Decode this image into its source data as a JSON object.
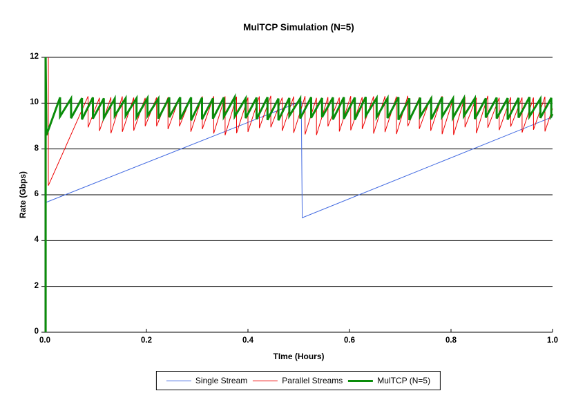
{
  "chart_data": {
    "type": "line",
    "title": "MulTCP Simulation (N=5)",
    "xlabel": "TIme (Hours)",
    "ylabel": "Rate (Gbps)",
    "xlim": [
      0,
      1
    ],
    "ylim": [
      0,
      12
    ],
    "xticks": [
      {
        "value": 0.0,
        "label": "0.0"
      },
      {
        "value": 0.2,
        "label": "0.2"
      },
      {
        "value": 0.4,
        "label": "0.4"
      },
      {
        "value": 0.6,
        "label": "0.6"
      },
      {
        "value": 0.8,
        "label": "0.8"
      },
      {
        "value": 1.0,
        "label": "1.0"
      }
    ],
    "yticks": [
      {
        "value": 0,
        "label": "0"
      },
      {
        "value": 2,
        "label": "2"
      },
      {
        "value": 4,
        "label": "4"
      },
      {
        "value": 6,
        "label": "6"
      },
      {
        "value": 8,
        "label": "8"
      },
      {
        "value": 10,
        "label": "10"
      },
      {
        "value": 12,
        "label": "12"
      }
    ],
    "grid": "horizontal",
    "grid_color": "#000000",
    "legend_position": "bottom-center",
    "series": [
      {
        "name": "Single Stream",
        "color": "#4169e1",
        "stroke_width": 1,
        "kind": "polyline",
        "points": [
          [
            0,
            5.65
          ],
          [
            0.505,
            10.08
          ],
          [
            0.507,
            5.0
          ],
          [
            1.0,
            9.4
          ]
        ]
      },
      {
        "name": "Parallel Streams",
        "color": "#ee0000",
        "stroke_width": 1,
        "kind": "sawtooth",
        "pre": [
          [
            0.0068,
            12
          ],
          [
            0.0068,
            6.4
          ],
          [
            0.085,
            10.3
          ]
        ],
        "sawtooth": {
          "start": 0.085,
          "end": 1.0,
          "period": 0.0225,
          "min": 9.0,
          "max": 10.32,
          "min_jitter": 0.4,
          "max_jitter": 0.1
        }
      },
      {
        "name": "MulTCP (N=5)",
        "color": "#0a8c0a",
        "stroke_width": 3,
        "kind": "sawtooth",
        "pre": [
          [
            0.0015,
            0
          ],
          [
            0.0015,
            12
          ],
          [
            0.003,
            8.6
          ],
          [
            0.03,
            10.25
          ]
        ],
        "sawtooth": {
          "start": 0.03,
          "end": 1.0,
          "period": 0.0215,
          "min": 9.45,
          "max": 10.27,
          "min_jitter": 0.2,
          "max_jitter": 0.08
        }
      }
    ]
  },
  "layout_note": "white background single chart"
}
